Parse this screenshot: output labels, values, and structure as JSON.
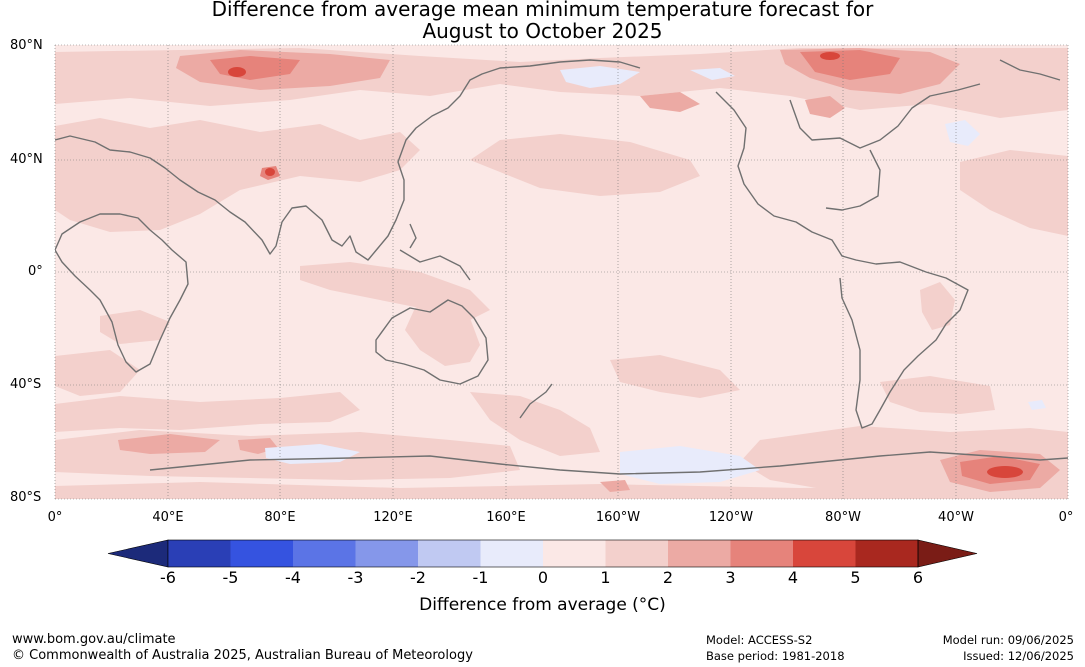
{
  "title_line1": "Difference from average mean minimum temperature forecast for",
  "title_line2": "August to October 2025",
  "lat_labels": [
    "80°N",
    "40°N",
    "0°",
    "40°S",
    "80°S"
  ],
  "lon_labels": [
    "0°",
    "40°E",
    "80°E",
    "120°E",
    "160°E",
    "160°W",
    "120°W",
    "80°W",
    "40°W",
    "0°"
  ],
  "colorbar": {
    "ticks": [
      "-6",
      "-5",
      "-4",
      "-3",
      "-2",
      "-1",
      "0",
      "1",
      "2",
      "3",
      "4",
      "5",
      "6"
    ],
    "colors": [
      "#1c2a7a",
      "#2a3fb6",
      "#3553e0",
      "#5b74e6",
      "#8597ea",
      "#c0c9f2",
      "#e8ebfb",
      "#fbe8e6",
      "#f3d0cc",
      "#ecaaa4",
      "#e6837b",
      "#d8463b",
      "#a9281f",
      "#7a1c16"
    ],
    "label": "Difference from average (°C)"
  },
  "footer": {
    "url": "www.bom.gov.au/climate",
    "copyright": "© Commonwealth of Australia 2025, Australian Bureau of Meteorology",
    "model": "Model: ACCESS-S2",
    "base_period": "Base period: 1981-2018",
    "model_run": "Model run: 09/06/2025",
    "issued": "Issued: 12/06/2025"
  }
}
